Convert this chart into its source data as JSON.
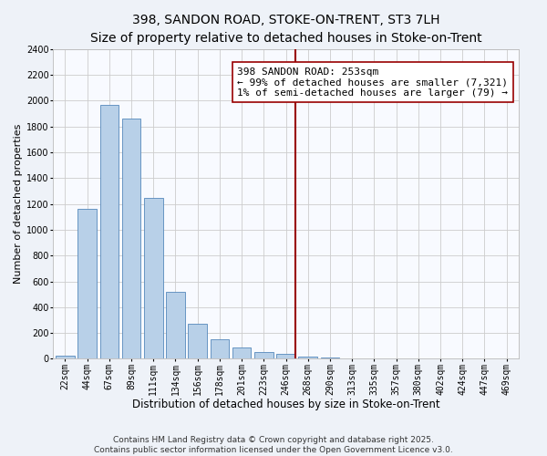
{
  "title": "398, SANDON ROAD, STOKE-ON-TRENT, ST3 7LH",
  "subtitle": "Size of property relative to detached houses in Stoke-on-Trent",
  "xlabel": "Distribution of detached houses by size in Stoke-on-Trent",
  "ylabel": "Number of detached properties",
  "bar_labels": [
    "22sqm",
    "44sqm",
    "67sqm",
    "89sqm",
    "111sqm",
    "134sqm",
    "156sqm",
    "178sqm",
    "201sqm",
    "223sqm",
    "246sqm",
    "268sqm",
    "290sqm",
    "313sqm",
    "335sqm",
    "357sqm",
    "380sqm",
    "402sqm",
    "424sqm",
    "447sqm",
    "469sqm"
  ],
  "bar_values": [
    25,
    1160,
    1970,
    1860,
    1250,
    520,
    275,
    150,
    85,
    50,
    40,
    15,
    10,
    5,
    3,
    2,
    1,
    1,
    0,
    0,
    0
  ],
  "bar_color": "#b8d0e8",
  "bar_edge_color": "#5588bb",
  "background_color": "#eef2f8",
  "plot_bg_color": "#f8faff",
  "vline_x_index": 10.45,
  "vline_color": "#990000",
  "annotation_title": "398 SANDON ROAD: 253sqm",
  "annotation_line1": "← 99% of detached houses are smaller (7,321)",
  "annotation_line2": "1% of semi-detached houses are larger (79) →",
  "annotation_box_facecolor": "#ffffff",
  "annotation_box_edgecolor": "#990000",
  "ylim": [
    0,
    2400
  ],
  "yticks": [
    0,
    200,
    400,
    600,
    800,
    1000,
    1200,
    1400,
    1600,
    1800,
    2000,
    2200,
    2400
  ],
  "footnote1": "Contains HM Land Registry data © Crown copyright and database right 2025.",
  "footnote2": "Contains public sector information licensed under the Open Government Licence v3.0.",
  "title_fontsize": 10,
  "subtitle_fontsize": 9,
  "xlabel_fontsize": 8.5,
  "ylabel_fontsize": 8,
  "tick_fontsize": 7,
  "annotation_fontsize": 8,
  "footnote_fontsize": 6.5,
  "grid_color": "#cccccc"
}
